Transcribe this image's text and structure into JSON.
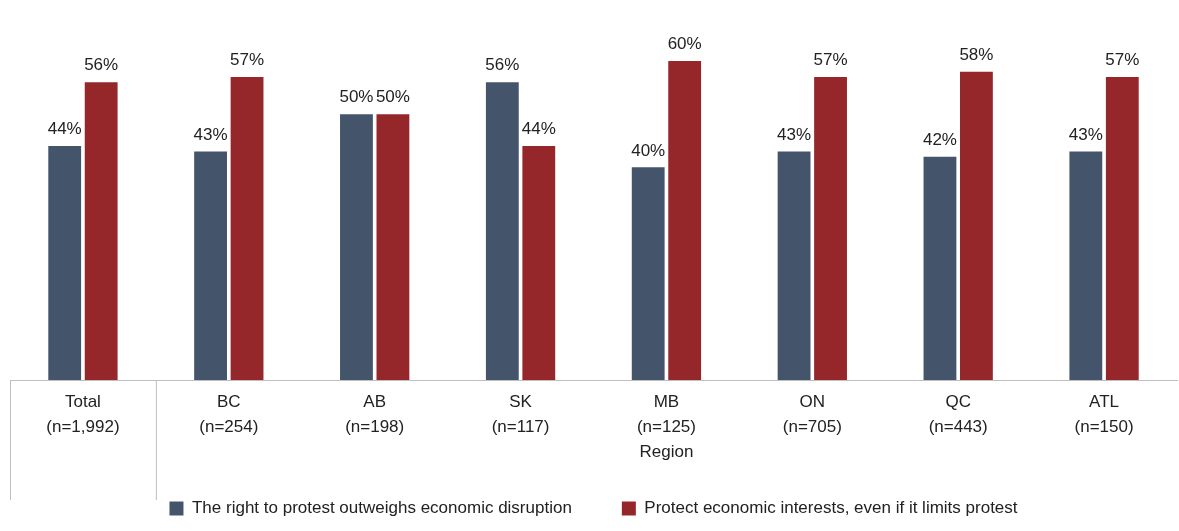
{
  "chart_data": {
    "type": "bar",
    "categories": [
      "Total (n=1,992)",
      "BC (n=254)",
      "AB (n=198)",
      "SK (n=117)",
      "MB (n=125)",
      "ON (n=705)",
      "QC (n=443)",
      "ATL (n=150)"
    ],
    "series": [
      {
        "name": "The right to protest outweighs economic disruption",
        "color": "#44546a",
        "values": [
          44,
          43,
          50,
          56,
          40,
          43,
          42,
          43
        ],
        "value_labels": [
          "44%",
          "43%",
          "50%",
          "56%",
          "40%",
          "43%",
          "42%",
          "43%"
        ]
      },
      {
        "name": "Protect economic interests, even if it limits protest",
        "color": "#95262a",
        "values": [
          56,
          57,
          50,
          44,
          60,
          57,
          58,
          57
        ],
        "value_labels": [
          "56%",
          "57%",
          "50%",
          "44%",
          "60%",
          "57%",
          "58%",
          "57%"
        ]
      }
    ],
    "annotations": [
      "Region"
    ],
    "legend": "bottom",
    "tick_labels": "x"
  }
}
